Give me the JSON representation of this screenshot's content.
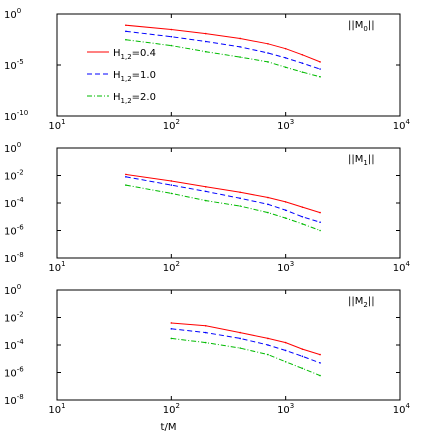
{
  "chart_data": [
    {
      "type": "line",
      "panel_label": "||M",
      "panel_subscript": "0",
      "x_scale": "log",
      "y_scale": "log",
      "xlim": [
        10,
        10000
      ],
      "ylim": [
        1e-10,
        1
      ],
      "y_ticks": [
        {
          "base": "10",
          "exp": "0",
          "value": 1
        },
        {
          "base": "10",
          "exp": "-5",
          "value": 1e-05
        },
        {
          "base": "10",
          "exp": "-10",
          "value": 1e-10
        }
      ],
      "x_ticks": [
        {
          "base": "10",
          "exp": "1",
          "value": 10
        },
        {
          "base": "10",
          "exp": "2",
          "value": 100
        },
        {
          "base": "10",
          "exp": "3",
          "value": 1000
        },
        {
          "base": "10",
          "exp": "4",
          "value": 10000
        }
      ],
      "legend": {
        "position": "left",
        "entries": [
          {
            "prefix": "H",
            "sub": "1,2",
            "suffix": "=0.4"
          },
          {
            "prefix": "H",
            "sub": "1,2",
            "suffix": "=1.0"
          },
          {
            "prefix": "H",
            "sub": "1,2",
            "suffix": "=2.0"
          }
        ]
      },
      "series": [
        {
          "style": "solid",
          "color": "#ff0000",
          "x": [
            40,
            100,
            200,
            400,
            700,
            1000,
            1400,
            2000
          ],
          "y": [
            0.08,
            0.03,
            0.012,
            0.004,
            0.0012,
            0.0004,
            0.0001,
            2e-05
          ]
        },
        {
          "style": "dashed",
          "color": "#0000ff",
          "x": [
            40,
            100,
            200,
            400,
            700,
            1000,
            1400,
            2000
          ],
          "y": [
            0.02,
            0.006,
            0.002,
            0.0006,
            0.00015,
            5e-05,
            1.5e-05,
            4e-06
          ]
        },
        {
          "style": "dashdot",
          "color": "#00bb00",
          "x": [
            40,
            100,
            200,
            400,
            700,
            1000,
            1400,
            2000
          ],
          "y": [
            0.003,
            0.0008,
            0.0002,
            6e-05,
            2e-05,
            6e-06,
            2e-06,
            7e-07
          ]
        }
      ]
    },
    {
      "type": "line",
      "panel_label": "||M",
      "panel_subscript": "1",
      "x_scale": "log",
      "y_scale": "log",
      "xlim": [
        10,
        10000
      ],
      "ylim": [
        1e-08,
        1
      ],
      "y_ticks": [
        {
          "base": "10",
          "exp": "0",
          "value": 1
        },
        {
          "base": "10",
          "exp": "-2",
          "value": 0.01
        },
        {
          "base": "10",
          "exp": "-4",
          "value": 0.0001
        },
        {
          "base": "10",
          "exp": "-6",
          "value": 1e-06
        },
        {
          "base": "10",
          "exp": "-8",
          "value": 1e-08
        }
      ],
      "x_ticks": [
        {
          "base": "10",
          "exp": "1",
          "value": 10
        },
        {
          "base": "10",
          "exp": "2",
          "value": 100
        },
        {
          "base": "10",
          "exp": "3",
          "value": 1000
        },
        {
          "base": "10",
          "exp": "4",
          "value": 10000
        }
      ],
      "series": [
        {
          "style": "solid",
          "color": "#ff0000",
          "x": [
            40,
            100,
            200,
            400,
            700,
            1000,
            1400,
            2000
          ],
          "y": [
            0.012,
            0.004,
            0.0015,
            0.0006,
            0.00025,
            0.00012,
            5e-05,
            2e-05
          ]
        },
        {
          "style": "dashed",
          "color": "#0000ff",
          "x": [
            40,
            100,
            200,
            400,
            700,
            1000,
            1400,
            2000
          ],
          "y": [
            0.008,
            0.002,
            0.0007,
            0.00022,
            8e-05,
            3e-05,
            1e-05,
            4e-06
          ]
        },
        {
          "style": "dashdot",
          "color": "#00bb00",
          "x": [
            40,
            100,
            200,
            400,
            700,
            1000,
            1400,
            2000
          ],
          "y": [
            0.002,
            0.0005,
            0.00015,
            6e-05,
            2e-05,
            8e-06,
            3e-06,
            1e-06
          ]
        }
      ]
    },
    {
      "type": "line",
      "panel_label": "||M",
      "panel_subscript": "2",
      "x_scale": "log",
      "y_scale": "log",
      "xlim": [
        10,
        10000
      ],
      "ylim": [
        1e-08,
        1
      ],
      "xlabel": "t/M",
      "y_ticks": [
        {
          "base": "10",
          "exp": "0",
          "value": 1
        },
        {
          "base": "10",
          "exp": "-2",
          "value": 0.01
        },
        {
          "base": "10",
          "exp": "-4",
          "value": 0.0001
        },
        {
          "base": "10",
          "exp": "-6",
          "value": 1e-06
        },
        {
          "base": "10",
          "exp": "-8",
          "value": 1e-08
        }
      ],
      "x_ticks": [
        {
          "base": "10",
          "exp": "1",
          "value": 10
        },
        {
          "base": "10",
          "exp": "2",
          "value": 100
        },
        {
          "base": "10",
          "exp": "3",
          "value": 1000
        },
        {
          "base": "10",
          "exp": "4",
          "value": 10000
        }
      ],
      "series": [
        {
          "style": "solid",
          "color": "#ff0000",
          "x": [
            100,
            200,
            400,
            700,
            1000,
            1400,
            2000
          ],
          "y": [
            0.004,
            0.0025,
            0.0008,
            0.0003,
            0.00015,
            5e-05,
            2e-05
          ]
        },
        {
          "style": "dashed",
          "color": "#0000ff",
          "x": [
            100,
            200,
            400,
            700,
            1000,
            1400,
            2000
          ],
          "y": [
            0.0015,
            0.0008,
            0.0003,
            0.0001,
            4e-05,
            1.5e-05,
            5e-06
          ]
        },
        {
          "style": "dashdot",
          "color": "#00bb00",
          "x": [
            100,
            200,
            400,
            700,
            1000,
            1400,
            2000
          ],
          "y": [
            0.0003,
            0.00015,
            6e-05,
            2e-05,
            6e-06,
            2e-06,
            6e-07
          ]
        }
      ]
    }
  ]
}
